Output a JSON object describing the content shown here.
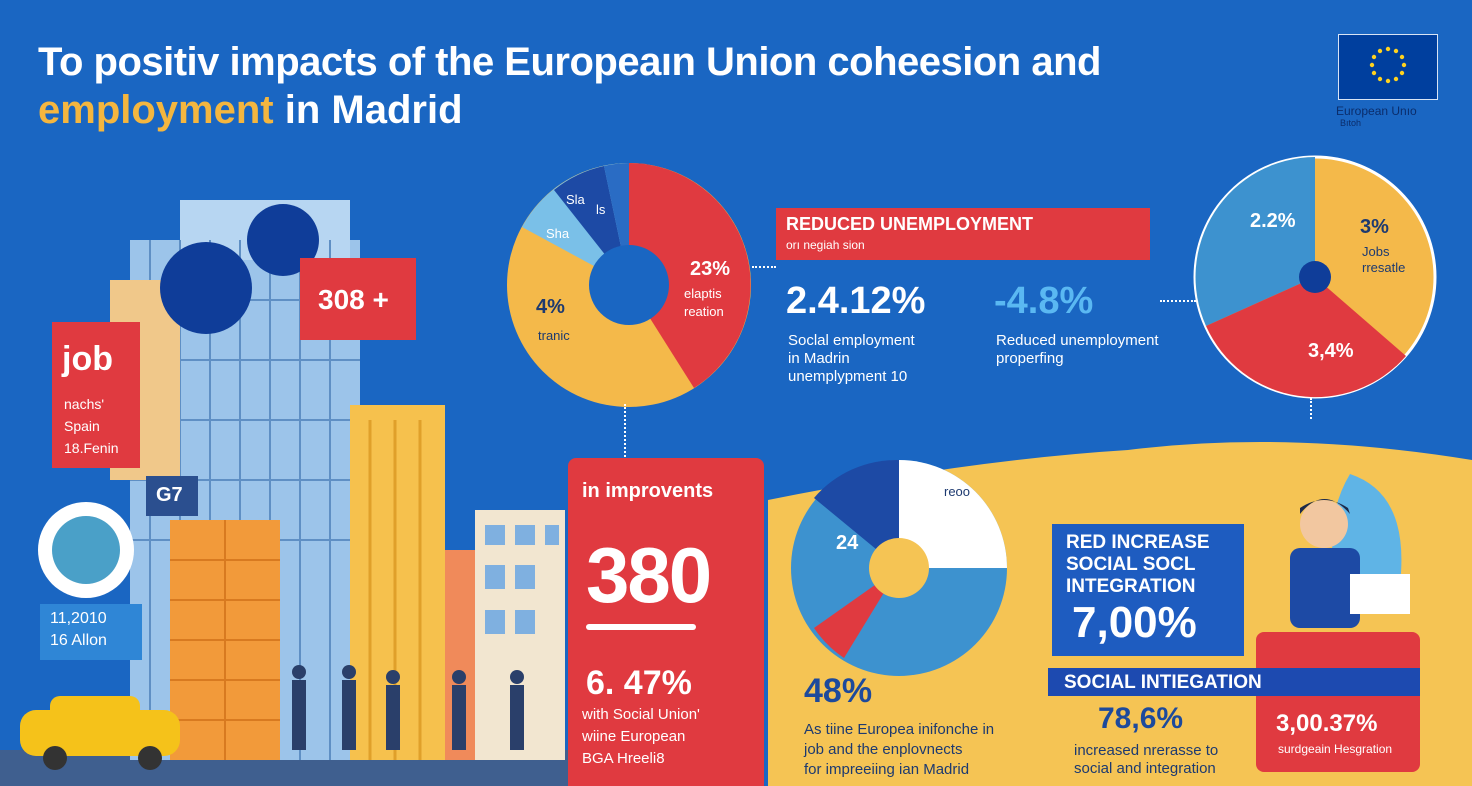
{
  "title": {
    "line1": "To positiv impacts of the Europeaın Union coheesion   and",
    "line2_highlight": "employment",
    "line2_rest": " in Madrid"
  },
  "eu": {
    "label": "European Unıo",
    "sub": "Bıtoh"
  },
  "job_box": {
    "big": "job",
    "line1": "nachs'",
    "line2": "Spain",
    "line3": "18.Fenin"
  },
  "box_308": "308 +",
  "box_2010": {
    "line1": "11,2010",
    "line2": "16 Allon"
  },
  "box_g7": "G7",
  "donut_left": {
    "label_a": "23%",
    "label_a_sub1": "elaptis",
    "label_a_sub2": "reation",
    "label_b": "4%",
    "label_b_sub": "tranic",
    "small_a": "Sla",
    "small_b": "ls",
    "small_c": "Sha"
  },
  "unemployment": {
    "title": "REDUCED UNEMPLOYMENT",
    "sub": "orı negiah sion",
    "stat1": "2.4.12%",
    "stat2": "-4.8%",
    "desc1_l1": "Soclal employment",
    "desc1_l2": "in Madrin",
    "desc1_l3": "unemplypment 10",
    "desc2_l1": "Reduced unemployment",
    "desc2_l2": "properfing"
  },
  "pie_right": {
    "a": "2.2%",
    "b": "3%",
    "b_sub1": "Jobs",
    "b_sub2": "rresatle",
    "c": "3,4%"
  },
  "improvements": {
    "title": "in improvents",
    "big": "380",
    "pct": "6. 47%",
    "line1": "with Social Union'",
    "line2": "wiine European",
    "line3": "BGA Hreeli8"
  },
  "pie_bottom": {
    "a": "24",
    "b": "reoo"
  },
  "stat48": {
    "value": "48%",
    "l1": "As tiine Europea inifonche in",
    "l2": "job and the enplovnects",
    "l3": "for impreeiing ian Madrid"
  },
  "increase": {
    "l1": "RED INCREASE",
    "l2": "SOCIAL SOCL",
    "l3": "INTEGRATION",
    "value": "7,00%"
  },
  "social_bar": "SOCIAL INTIEGATION",
  "stat786": {
    "value": "78,6%",
    "l1": "increased nrerasse to",
    "l2": "social and integration"
  },
  "box_3003": {
    "value": "3,00.37%",
    "sub": "surdgeain Hesgration"
  },
  "colors": {
    "blue_bg": "#1a66c2",
    "red": "#e03a40",
    "yellow": "#f5c454",
    "dark_blue": "#1d4ab0",
    "light_blue": "#4a9ad6"
  }
}
